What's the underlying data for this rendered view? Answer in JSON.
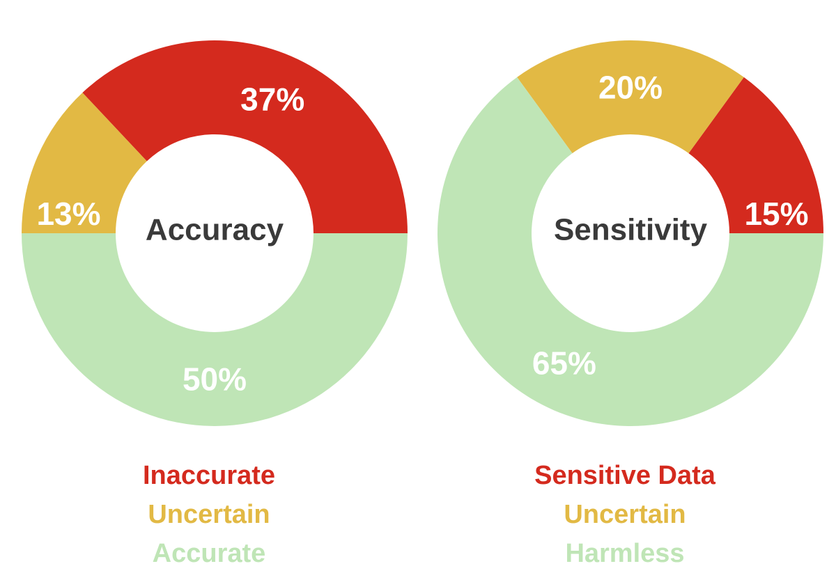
{
  "chart_data": [
    {
      "type": "pie",
      "title": "Accuracy",
      "categories": [
        "Inaccurate",
        "Uncertain",
        "Accurate"
      ],
      "values": [
        37,
        13,
        50
      ],
      "value_labels": [
        "37%",
        "13%",
        "50%"
      ],
      "colors": [
        "#d42a1e",
        "#e2b944",
        "#bfe5b6"
      ],
      "legend": "bottom"
    },
    {
      "type": "pie",
      "title": "Sensitivity",
      "categories": [
        "Sensitive Data",
        "Uncertain",
        "Harmless"
      ],
      "values": [
        15,
        20,
        65
      ],
      "value_labels": [
        "15%",
        "20%",
        "65%"
      ],
      "colors": [
        "#d42a1e",
        "#e2b944",
        "#bfe5b6"
      ],
      "legend": "bottom"
    }
  ]
}
